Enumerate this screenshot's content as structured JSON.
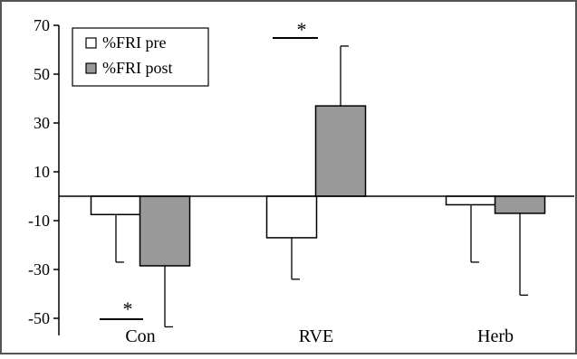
{
  "chart_data": {
    "type": "bar",
    "title": "",
    "xlabel": "",
    "ylabel": "",
    "categories": [
      "Con",
      "RVE",
      "Herb"
    ],
    "series": [
      {
        "name": "%FRI pre",
        "values": [
          -7.5,
          -17,
          -3.5
        ],
        "errors": [
          19.5,
          17,
          23.5
        ],
        "color": "#ffffff"
      },
      {
        "name": "%FRI post",
        "values": [
          -28.5,
          37,
          -7
        ],
        "errors": [
          25,
          24.5,
          33.5
        ],
        "color": "#999999"
      }
    ],
    "error_bar_direction": "away-from-zero",
    "ylim": [
      -57,
      70
    ],
    "yticks": [
      70,
      50,
      30,
      10,
      -10,
      -30,
      -50
    ],
    "legend_position": "top-left",
    "significance_markers": [
      {
        "category": "RVE",
        "text": "*",
        "side": "above"
      },
      {
        "category": "Con",
        "text": "*",
        "side": "below"
      }
    ],
    "colors": {
      "axis": "#000000",
      "pre_fill": "#ffffff",
      "post_fill": "#999999",
      "frame": "#555555"
    }
  }
}
